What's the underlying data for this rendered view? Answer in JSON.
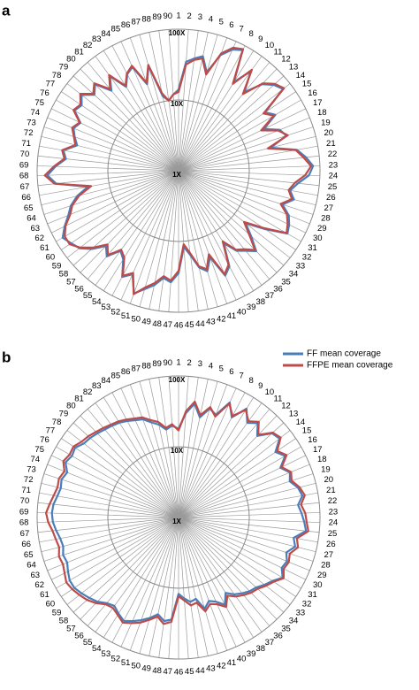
{
  "chart_data": [
    {
      "type": "radar",
      "panel_label": "a",
      "log_scale": true,
      "categories": [
        "1",
        "2",
        "3",
        "4",
        "5",
        "6",
        "7",
        "8",
        "9",
        "10",
        "11",
        "12",
        "13",
        "14",
        "15",
        "16",
        "17",
        "18",
        "19",
        "20",
        "21",
        "22",
        "23",
        "24",
        "25",
        "26",
        "27",
        "28",
        "29",
        "30",
        "31",
        "32",
        "33",
        "34",
        "35",
        "36",
        "37",
        "38",
        "39",
        "40",
        "41",
        "42",
        "43",
        "44",
        "45",
        "46",
        "47",
        "48",
        "49",
        "50",
        "51",
        "52",
        "53",
        "54",
        "55",
        "56",
        "57",
        "58",
        "59",
        "60",
        "61",
        "62",
        "63",
        "64",
        "65",
        "66",
        "67",
        "68",
        "69",
        "70",
        "71",
        "72",
        "73",
        "74",
        "75",
        "76",
        "77",
        "78",
        "79",
        "80",
        "81",
        "82",
        "83",
        "84",
        "85",
        "86",
        "87",
        "88",
        "89",
        "90"
      ],
      "ylim": [
        1,
        100
      ],
      "yticks": [
        {
          "value": 1,
          "label": "1X"
        },
        {
          "value": 10,
          "label": "10X"
        },
        {
          "value": 100,
          "label": "100X"
        }
      ],
      "series": [
        {
          "name": "FF mean coverage",
          "color": "#4a7ebb",
          "values": [
            14,
            35,
            40,
            45,
            28,
            55,
            75,
            85,
            30,
            55,
            28,
            50,
            65,
            75,
            30,
            38,
            22,
            35,
            40,
            22,
            50,
            65,
            80,
            70,
            50,
            40,
            48,
            35,
            48,
            55,
            60,
            30,
            16,
            24,
            38,
            30,
            25,
            16,
            34,
            42,
            20,
            30,
            25,
            16,
            12,
            28,
            38,
            34,
            45,
            55,
            70,
            40,
            50,
            30,
            25,
            38,
            30,
            45,
            60,
            68,
            78,
            62,
            48,
            40,
            30,
            20,
            55,
            72,
            55,
            40,
            45,
            30,
            35,
            40,
            35,
            50,
            45,
            55,
            40,
            50,
            30,
            45,
            25,
            35,
            40,
            20,
            35,
            12,
            10,
            12
          ]
        },
        {
          "name": "FFPE mean coverage",
          "color": "#be4b48",
          "values": [
            13,
            32,
            38,
            42,
            26,
            58,
            80,
            88,
            28,
            58,
            26,
            52,
            68,
            78,
            28,
            36,
            20,
            33,
            42,
            20,
            48,
            60,
            75,
            62,
            45,
            38,
            45,
            33,
            45,
            52,
            58,
            28,
            15,
            22,
            36,
            28,
            24,
            15,
            32,
            40,
            18,
            28,
            24,
            15,
            11,
            26,
            36,
            32,
            42,
            52,
            72,
            38,
            48,
            28,
            24,
            36,
            28,
            42,
            58,
            72,
            72,
            60,
            45,
            38,
            28,
            18,
            58,
            78,
            58,
            42,
            47,
            32,
            36,
            42,
            36,
            52,
            47,
            58,
            42,
            52,
            32,
            47,
            26,
            36,
            42,
            21,
            36,
            13,
            10,
            12
          ]
        }
      ]
    },
    {
      "type": "radar",
      "panel_label": "b",
      "log_scale": true,
      "categories": [
        "1",
        "2",
        "3",
        "4",
        "5",
        "6",
        "7",
        "8",
        "9",
        "10",
        "11",
        "12",
        "13",
        "14",
        "15",
        "16",
        "17",
        "18",
        "19",
        "20",
        "21",
        "22",
        "23",
        "24",
        "25",
        "26",
        "27",
        "28",
        "29",
        "30",
        "31",
        "32",
        "33",
        "34",
        "35",
        "36",
        "37",
        "38",
        "39",
        "40",
        "41",
        "42",
        "43",
        "44",
        "45",
        "46",
        "47",
        "48",
        "49",
        "50",
        "51",
        "52",
        "53",
        "54",
        "55",
        "56",
        "57",
        "58",
        "59",
        "60",
        "61",
        "62",
        "63",
        "64",
        "65",
        "66",
        "67",
        "68",
        "69",
        "70",
        "71",
        "72",
        "73",
        "74",
        "75",
        "76",
        "77",
        "78",
        "79",
        "80",
        "81",
        "82",
        "83",
        "84",
        "85",
        "86",
        "87",
        "88",
        "89",
        "90"
      ],
      "ylim": [
        1,
        100
      ],
      "yticks": [
        {
          "value": 1,
          "label": "1X"
        },
        {
          "value": 10,
          "label": "10X"
        },
        {
          "value": 100,
          "label": "100X"
        }
      ],
      "series": [
        {
          "color": "#4a7ebb",
          "values": [
            18,
            30,
            42,
            28,
            40,
            35,
            60,
            40,
            65,
            45,
            55,
            40,
            60,
            65,
            45,
            55,
            40,
            50,
            45,
            55,
            60,
            50,
            55,
            60,
            65,
            45,
            50,
            40,
            45,
            42,
            50,
            40,
            35,
            30,
            28,
            25,
            22,
            18,
            25,
            20,
            18,
            22,
            15,
            16,
            14,
            12,
            28,
            30,
            25,
            30,
            35,
            40,
            45,
            40,
            35,
            38,
            45,
            50,
            55,
            60,
            60,
            55,
            50,
            52,
            48,
            50,
            55,
            60,
            62,
            60,
            55,
            52,
            55,
            50,
            60,
            55,
            58,
            50,
            48,
            45,
            42,
            40,
            38,
            35,
            32,
            30,
            25,
            22,
            18,
            20
          ]
        },
        {
          "color": "#be4b48",
          "values": [
            17,
            32,
            45,
            30,
            42,
            33,
            58,
            42,
            62,
            48,
            58,
            42,
            62,
            68,
            48,
            58,
            42,
            52,
            48,
            58,
            65,
            55,
            62,
            65,
            70,
            50,
            55,
            45,
            48,
            45,
            52,
            42,
            37,
            32,
            30,
            27,
            24,
            20,
            27,
            22,
            20,
            24,
            17,
            18,
            15,
            13,
            30,
            33,
            27,
            32,
            38,
            43,
            48,
            42,
            38,
            40,
            48,
            55,
            60,
            65,
            68,
            62,
            58,
            60,
            55,
            58,
            62,
            70,
            75,
            68,
            62,
            58,
            60,
            55,
            65,
            60,
            62,
            55,
            52,
            48,
            45,
            42,
            40,
            37,
            34,
            32,
            27,
            24,
            19,
            21
          ]
        }
      ]
    }
  ]
}
